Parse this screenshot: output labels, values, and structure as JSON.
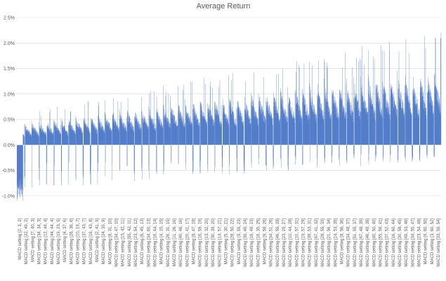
{
  "chart_data": {
    "type": "bar",
    "title": "Average Return",
    "xlabel": "",
    "ylabel": "",
    "ylim": [
      -0.0125,
      0.025
    ],
    "yticks": [
      -0.01,
      -0.005,
      0.0,
      0.005,
      0.01,
      0.015,
      0.02,
      0.025
    ],
    "ytick_labels": [
      "-1.0%",
      "-0.5%",
      "0.0%",
      "0.5%",
      "1.0%",
      "1.5%",
      "2.0%",
      "2.5%"
    ],
    "grid": true,
    "legend": "none",
    "bar_color": "#4472c4",
    "n_bars": 2800,
    "x_tick_labels": [
      "MACD setting [2, 3, 2]",
      "MACD setting [22, 49, 2]",
      "MACD setting [7, 40, 3]",
      "MACD setting [34, 34, 3]",
      "MACD setting [12, 44, 4]",
      "MACD setting [44, 44, 4]",
      "MACD setting [19, 23, 5]",
      "MACD setting [4, 37, 6]",
      "MACD setting [26, 36, 6]",
      "MACD setting [10, 19, 7]",
      "MACD setting [37, 43, 7]",
      "MACD setting [16, 43, 8]",
      "MACD setting [2, 41, 9]",
      "MACD setting [24, 35, 9]",
      "MACD setting [8, 31, 10]",
      "MACD setting [34, 47, 10]",
      "MACD setting [15, 42, 11]",
      "MACD setting [55, 42, 11]",
      "MACD setting [23, 54, 12]",
      "MACD setting [6, 45, 13]",
      "MACD setting [34, 60, 13]",
      "MACD setting [16, 44, 14]",
      "MACD setting [4, 15, 15]",
      "MACD setting [26, 31, 15]",
      "MACD setting [11, 26, 16]",
      "MACD setting [40, 46, 16]",
      "MACD setting [20, 41, 17]",
      "MACD setting [8, 47, 18]",
      "MACD setting [16, 59, 19]",
      "MACD setting [13, 32, 20]",
      "MACD setting [30, 39, 20]",
      "MACD setting [14, 57, 21]",
      "MACD setting [5, 30, 21]",
      "MACD setting [28, 50, 22]",
      "MACD setting [9, 59, 23]",
      "MACD setting [39, 49, 24]",
      "MACD setting [16, 49, 23]",
      "MACD setting [16, 35, 25]",
      "MACD setting [9, 58, 26]",
      "MACD setting [34, 51, 26]",
      "MACD setting [46, 59, 28]",
      "MACD setting [23, 29, 27]",
      "MACD setting [10, 44, 28]",
      "MACD setting [10, 57, 31]",
      "MACD setting [15, 57, 29]",
      "MACD setting [39, 53, 31]",
      "MACD setting [47, 41, 32]",
      "MACD setting [28, 55, 33]",
      "MACD setting [21, 56, 34]",
      "MACD setting [14, 53, 35]",
      "MACD setting [8, 56, 36]",
      "MACD setting [34, 48, 37]",
      "MACD setting [51, 55, 37]",
      "MACD setting [47, 48, 39]",
      "MACD setting [46, 49, 38]",
      "MACD setting [40, 50, 40]",
      "MACD setting [55, 59, 41]",
      "MACD setting [37, 52, 43]",
      "MACD setting [16, 60, 44]",
      "MACD setting [30, 58, 45]",
      "MACD setting [49, 53, 46]",
      "MACD setting [34, 55, 47]",
      "MACD setting [23, 54, 48]",
      "MACD setting [9, 60, 50]",
      "MACD setting [3, 60, 52]",
      "MACD setting [33, 59, 54]"
    ]
  }
}
